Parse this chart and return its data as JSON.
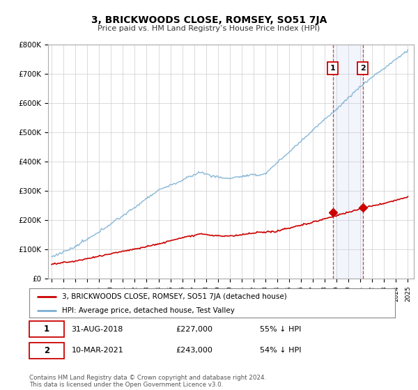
{
  "title": "3, BRICKWOODS CLOSE, ROMSEY, SO51 7JA",
  "subtitle": "Price paid vs. HM Land Registry’s House Price Index (HPI)",
  "ylim": [
    0,
    800000
  ],
  "yticks": [
    0,
    100000,
    200000,
    300000,
    400000,
    500000,
    600000,
    700000,
    800000
  ],
  "ytick_labels": [
    "£0",
    "£100K",
    "£200K",
    "£300K",
    "£400K",
    "£500K",
    "£600K",
    "£700K",
    "£800K"
  ],
  "background_color": "#ffffff",
  "plot_bg_color": "#ffffff",
  "grid_color": "#cccccc",
  "hpi_color": "#7bafd4",
  "price_color": "#cc0000",
  "t1": 2018.67,
  "t2": 2021.19,
  "marker1_price": 227000,
  "marker2_price": 243000,
  "legend_line1": "3, BRICKWOODS CLOSE, ROMSEY, SO51 7JA (detached house)",
  "legend_line2": "HPI: Average price, detached house, Test Valley",
  "table_row1": [
    "1",
    "31-AUG-2018",
    "£227,000",
    "55% ↓ HPI"
  ],
  "table_row2": [
    "2",
    "10-MAR-2021",
    "£243,000",
    "54% ↓ HPI"
  ],
  "footer": "Contains HM Land Registry data © Crown copyright and database right 2024.\nThis data is licensed under the Open Government Licence v3.0."
}
